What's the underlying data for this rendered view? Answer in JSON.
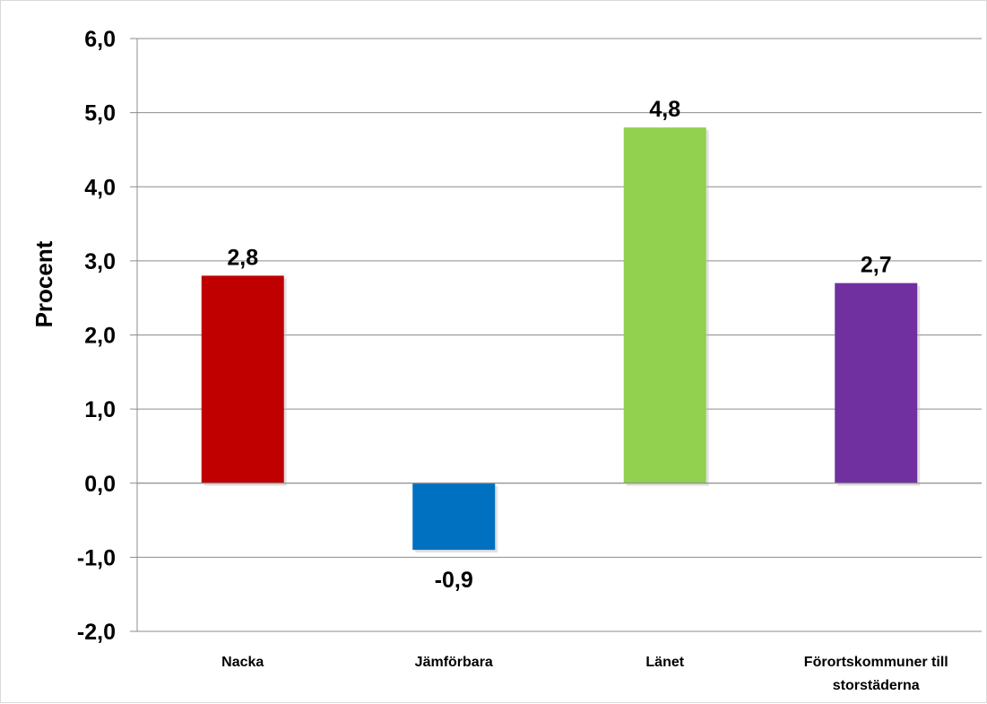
{
  "chart_data": {
    "type": "bar",
    "title": "",
    "xlabel": "",
    "ylabel": "Procent",
    "ylim": [
      -2.0,
      6.0
    ],
    "yticks": [
      6.0,
      5.0,
      4.0,
      3.0,
      2.0,
      1.0,
      0.0,
      -1.0,
      -2.0
    ],
    "ytick_labels": [
      "6,0",
      "5,0",
      "4,0",
      "3,0",
      "2,0",
      "1,0",
      "0,0",
      "-1,0",
      "-2,0"
    ],
    "grid": true,
    "legend": "none",
    "categories": [
      {
        "lines": [
          "Nacka"
        ]
      },
      {
        "lines": [
          "Jämförbara"
        ]
      },
      {
        "lines": [
          "Länet"
        ]
      },
      {
        "lines": [
          "Förortskommuner till",
          "storstäderna"
        ]
      }
    ],
    "values": [
      2.8,
      -0.9,
      4.8,
      2.7
    ],
    "value_labels": [
      "2,8",
      "-0,9",
      "4,8",
      "2,7"
    ],
    "colors": [
      "#c00000",
      "#0070c0",
      "#92d050",
      "#7030a0"
    ]
  }
}
